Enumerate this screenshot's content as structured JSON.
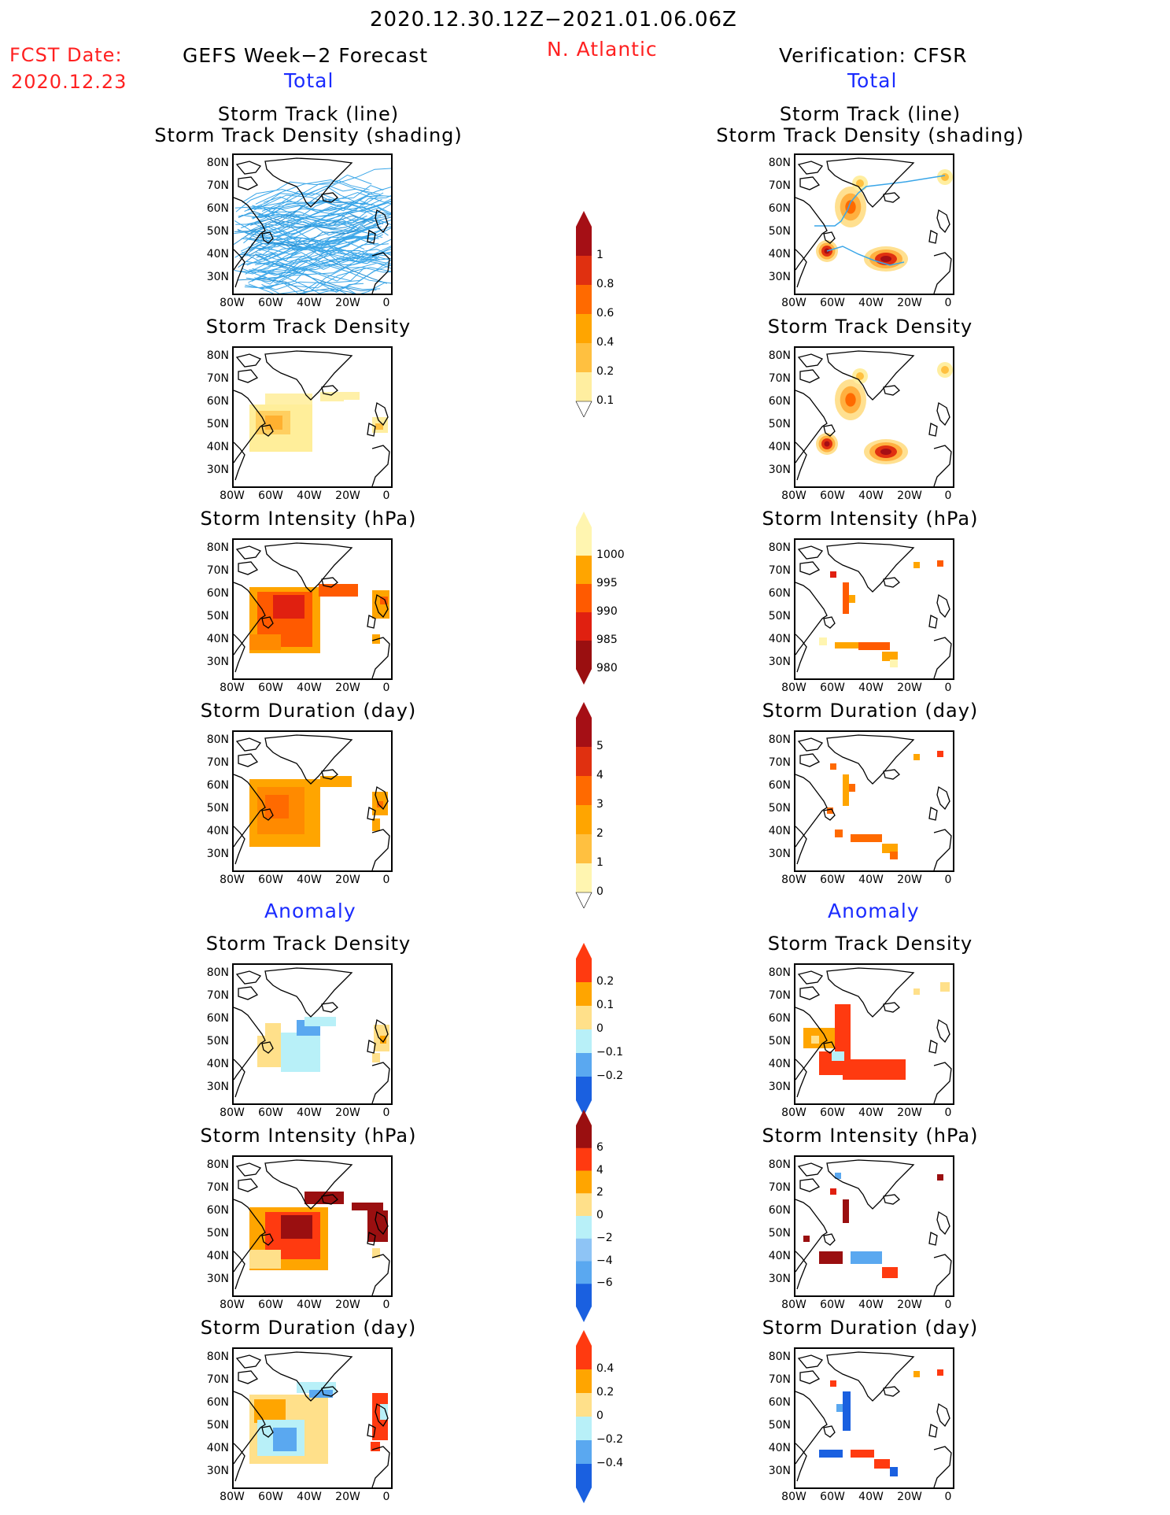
{
  "header": {
    "period": "2020.12.30.12Z−2021.01.06.06Z",
    "fcst_label": "FCST Date:",
    "fcst_date": "2020.12.23",
    "model_title": "GEFS Week−2 Forecast",
    "region": "N. Atlantic",
    "verif_title": "Verification: CFSR"
  },
  "sections": {
    "total": "Total",
    "anomaly": "Anomaly"
  },
  "panel_titles": {
    "track_line": "Storm Track (line)",
    "track_density_shading": "Storm Track Density (shading)",
    "track_density": "Storm Track Density",
    "intensity": "Storm Intensity (hPa)",
    "duration": "Storm Duration (day)"
  },
  "axes": {
    "lat_labels": [
      "80N",
      "70N",
      "60N",
      "50N",
      "40N",
      "30N"
    ],
    "lon_labels": [
      "80W",
      "60W",
      "40W",
      "20W",
      "0"
    ]
  },
  "colorbars": {
    "density": {
      "labels": [
        "1",
        "0.8",
        "0.6",
        "0.4",
        "0.2",
        "0.1"
      ],
      "colors": [
        "#a50f15",
        "#e03010",
        "#ff6a00",
        "#ffa500",
        "#ffc040",
        "#ffeea0"
      ]
    },
    "intensity": {
      "labels": [
        "1000",
        "995",
        "990",
        "985",
        "980"
      ],
      "colors": [
        "#fff5b0",
        "#ffa500",
        "#ff5a00",
        "#e02010",
        "#9a0f10"
      ]
    },
    "duration": {
      "labels": [
        "5",
        "4",
        "3",
        "2",
        "1",
        "0"
      ],
      "colors": [
        "#a50f15",
        "#e03010",
        "#ff6a00",
        "#ffa500",
        "#ffc040",
        "#fff5b0"
      ]
    },
    "anom_density": {
      "labels": [
        "0.2",
        "0.1",
        "0",
        "−0.1",
        "−0.2"
      ],
      "colors": [
        "#ff3a10",
        "#ffa500",
        "#ffe08a",
        "#b8f0f8",
        "#5aa8f0",
        "#1a60e0"
      ]
    },
    "anom_intensity": {
      "labels": [
        "6",
        "4",
        "2",
        "0",
        "−2",
        "−4",
        "−6"
      ],
      "colors": [
        "#9a0f10",
        "#ff3a10",
        "#ffa500",
        "#ffe08a",
        "#b8f0f8",
        "#8ec4f5",
        "#5aa8f0",
        "#1a60e0"
      ]
    },
    "anom_duration": {
      "labels": [
        "0.4",
        "0.2",
        "0",
        "−0.2",
        "−0.4"
      ],
      "colors": [
        "#ff3a10",
        "#ffa500",
        "#ffe08a",
        "#b8f0f8",
        "#5aa8f0",
        "#1a60e0"
      ]
    }
  }
}
